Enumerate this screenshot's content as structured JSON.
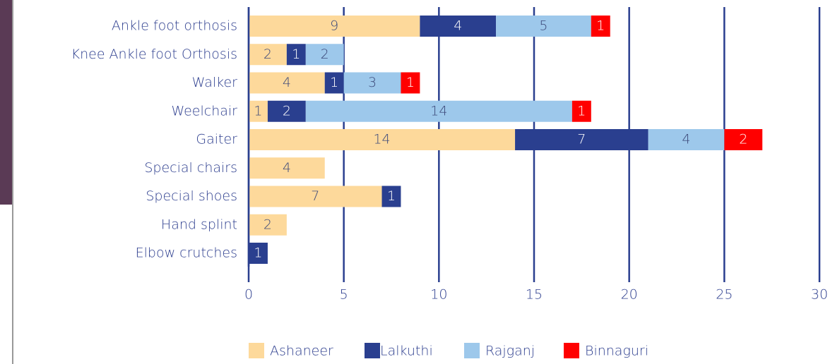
{
  "chart_data": {
    "type": "bar",
    "orientation": "horizontal",
    "stacked": true,
    "categories": [
      "Ankle foot orthosis",
      "Knee Ankle foot Orthosis",
      "Walker",
      "Weelchair",
      "Gaiter",
      "Special chairs",
      "Special shoes",
      "Hand splint",
      "Elbow crutches"
    ],
    "series": [
      {
        "name": "Ashaneer",
        "color": "#fdd99b",
        "values": [
          9,
          2,
          4,
          1,
          14,
          4,
          7,
          2,
          null
        ]
      },
      {
        "name": "Lalkuthi",
        "color": "#2a3f8f",
        "values": [
          4,
          1,
          1,
          2,
          7,
          null,
          1,
          null,
          1
        ]
      },
      {
        "name": "Rajganj",
        "color": "#9dc8eb",
        "values": [
          5,
          2,
          3,
          14,
          4,
          null,
          null,
          null,
          null
        ]
      },
      {
        "name": "Binnaguri",
        "color": "#ff0000",
        "values": [
          1,
          null,
          1,
          1,
          2,
          null,
          null,
          null,
          null
        ]
      }
    ],
    "xlim": [
      0,
      30
    ],
    "xticks": [
      0,
      5,
      10,
      15,
      20,
      25,
      30
    ],
    "grid": true,
    "legend": "bottom"
  }
}
